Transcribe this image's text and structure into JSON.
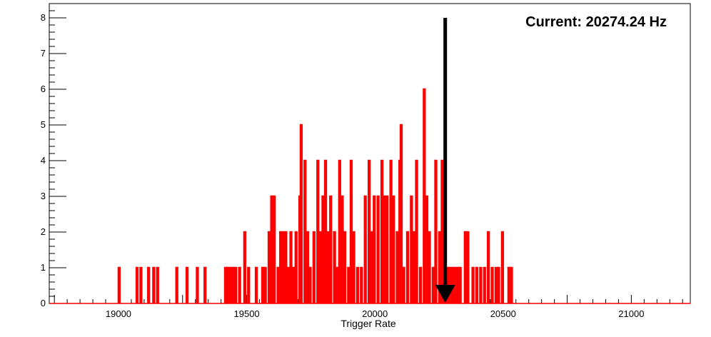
{
  "chart_data": {
    "type": "histogram",
    "title": "",
    "xlabel": "Trigger Rate",
    "ylabel": "",
    "xlim": [
      18730,
      21230
    ],
    "ylim": [
      0,
      8.4
    ],
    "grid": false,
    "legend": "none",
    "x_ticks": [
      19000,
      19500,
      20000,
      20500,
      21000
    ],
    "x_tick_labels": [
      "19000",
      "19500",
      "20000",
      "20500",
      "21000"
    ],
    "y_ticks": [
      0,
      1,
      2,
      3,
      4,
      5,
      6,
      7,
      8
    ],
    "y_tick_labels": [
      "0",
      "1",
      "2",
      "3",
      "4",
      "5",
      "6",
      "7",
      "8"
    ],
    "series": [
      {
        "color": "#ff0000",
        "bin_width": 5,
        "entries": [
          [
            19000,
            1
          ],
          [
            19070,
            1
          ],
          [
            19085,
            1
          ],
          [
            19115,
            1
          ],
          [
            19135,
            1
          ],
          [
            19150,
            1
          ],
          [
            19225,
            1
          ],
          [
            19265,
            1
          ],
          [
            19305,
            1
          ],
          [
            19335,
            1
          ],
          [
            19415,
            1
          ],
          [
            19425,
            1
          ],
          [
            19435,
            1
          ],
          [
            19445,
            1
          ],
          [
            19455,
            1
          ],
          [
            19470,
            1
          ],
          [
            19490,
            2
          ],
          [
            19505,
            1
          ],
          [
            19535,
            1
          ],
          [
            19560,
            1
          ],
          [
            19570,
            1
          ],
          [
            19585,
            2
          ],
          [
            19595,
            3
          ],
          [
            19605,
            3
          ],
          [
            19620,
            1
          ],
          [
            19630,
            2
          ],
          [
            19640,
            2
          ],
          [
            19650,
            2
          ],
          [
            19660,
            1
          ],
          [
            19670,
            2
          ],
          [
            19680,
            1
          ],
          [
            19690,
            2
          ],
          [
            19705,
            3
          ],
          [
            19710,
            5
          ],
          [
            19725,
            4
          ],
          [
            19735,
            2
          ],
          [
            19745,
            1
          ],
          [
            19760,
            2
          ],
          [
            19775,
            4
          ],
          [
            19785,
            2
          ],
          [
            19795,
            3
          ],
          [
            19805,
            4
          ],
          [
            19815,
            2
          ],
          [
            19825,
            3
          ],
          [
            19840,
            2
          ],
          [
            19850,
            1
          ],
          [
            19860,
            4
          ],
          [
            19870,
            3
          ],
          [
            19880,
            2
          ],
          [
            19895,
            1
          ],
          [
            19905,
            4
          ],
          [
            19915,
            2
          ],
          [
            19930,
            1
          ],
          [
            19945,
            1
          ],
          [
            19960,
            3
          ],
          [
            19975,
            4
          ],
          [
            19985,
            2
          ],
          [
            19995,
            3
          ],
          [
            20010,
            3
          ],
          [
            20025,
            4
          ],
          [
            20035,
            3
          ],
          [
            20045,
            3
          ],
          [
            20060,
            4
          ],
          [
            20070,
            3
          ],
          [
            20085,
            2
          ],
          [
            20095,
            4
          ],
          [
            20100,
            5
          ],
          [
            20110,
            1
          ],
          [
            20125,
            2
          ],
          [
            20140,
            3
          ],
          [
            20150,
            2
          ],
          [
            20160,
            4
          ],
          [
            20175,
            1
          ],
          [
            20190,
            6
          ],
          [
            20200,
            3
          ],
          [
            20210,
            2
          ],
          [
            20225,
            1
          ],
          [
            20235,
            4
          ],
          [
            20250,
            2
          ],
          [
            20260,
            4
          ],
          [
            20270,
            2
          ],
          [
            20280,
            1
          ],
          [
            20290,
            1
          ],
          [
            20300,
            1
          ],
          [
            20310,
            1
          ],
          [
            20320,
            1
          ],
          [
            20330,
            1
          ],
          [
            20350,
            2
          ],
          [
            20360,
            2
          ],
          [
            20380,
            1
          ],
          [
            20395,
            1
          ],
          [
            20410,
            1
          ],
          [
            20425,
            1
          ],
          [
            20440,
            2
          ],
          [
            20455,
            1
          ],
          [
            20470,
            1
          ],
          [
            20480,
            1
          ],
          [
            20495,
            2
          ],
          [
            20520,
            1
          ],
          [
            20530,
            1
          ]
        ]
      }
    ],
    "marker": {
      "x": 20274.24,
      "color": "#000000"
    },
    "annotation": "Current: 20274.24 Hz"
  }
}
